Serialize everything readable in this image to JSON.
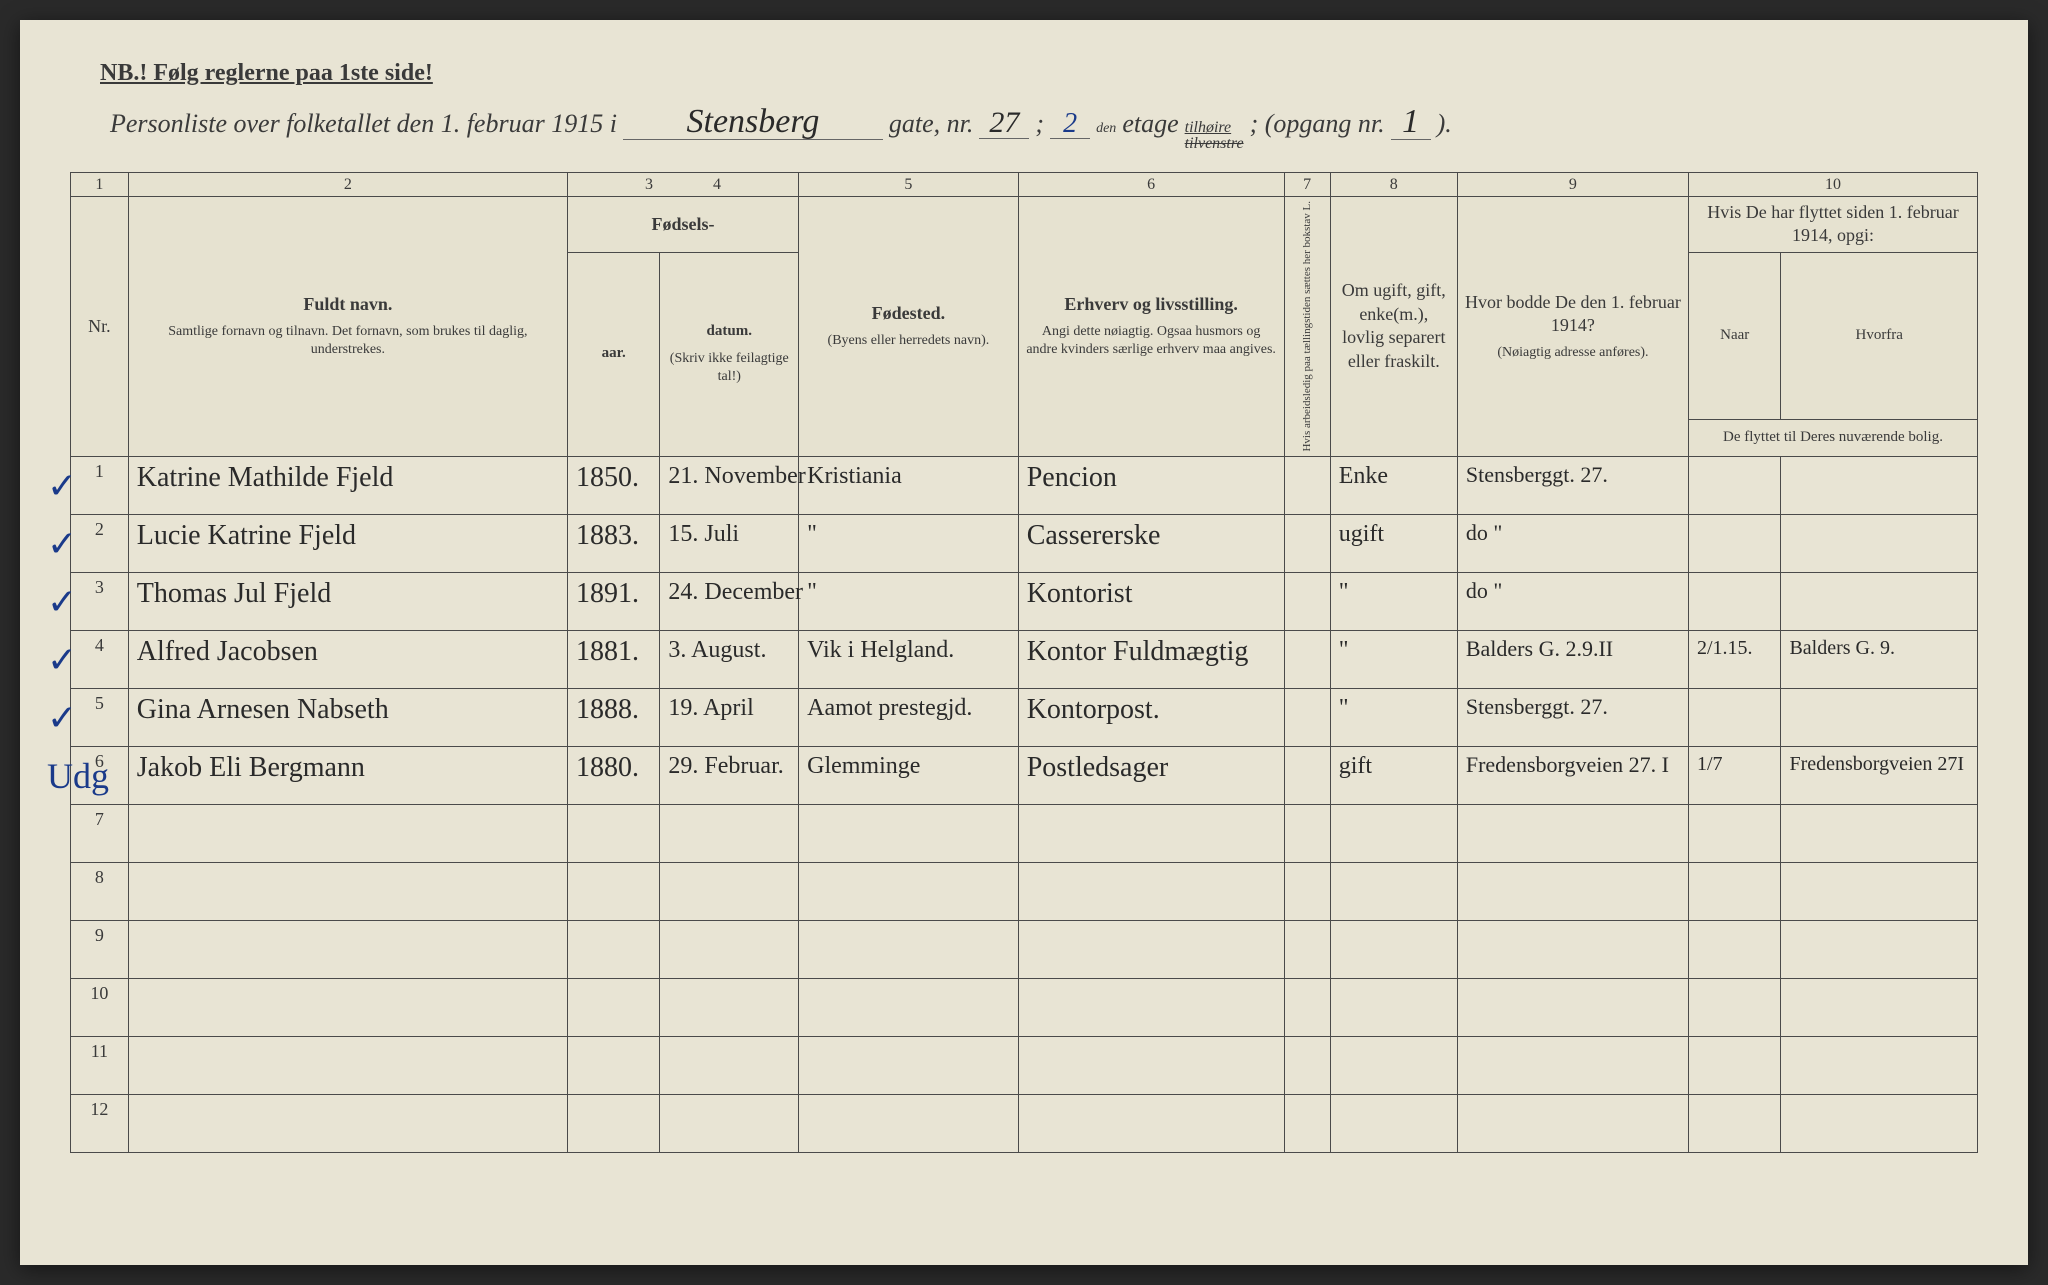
{
  "notice": "NB.! Følg reglerne paa 1ste side!",
  "header": {
    "prefix": "Personliste over folketallet den 1. februar 1915 i",
    "street": "Stensberg",
    "gate_label": "gate, nr.",
    "nr": "27",
    "semicolon": ";",
    "etage": "2",
    "etage_suffix": "den",
    "etage_label": "etage",
    "side_top": "tilhøire",
    "side_bottom": "tilvenstre",
    "opgang_label": "; (opgang nr.",
    "opgang": "1",
    "closing": ")."
  },
  "columns": {
    "nums": [
      "1",
      "2",
      "3",
      "4",
      "5",
      "6",
      "7",
      "8",
      "9",
      "10"
    ],
    "nr": "Nr.",
    "name_title": "Fuldt navn.",
    "name_sub": "Samtlige fornavn og tilnavn. Det fornavn, som brukes til daglig, understrekes.",
    "fodsels": "Fødsels-",
    "year": "aar.",
    "date": "datum.",
    "fodsels_note": "(Skriv ikke feilagtige tal!)",
    "place_title": "Fødested.",
    "place_sub": "(Byens eller herredets navn).",
    "occ_title": "Erhverv og livsstilling.",
    "occ_sub": "Angi dette nøiagtig. Ogsaa husmors og andre kvinders særlige erhverv maa angives.",
    "col7": "Hvis arbeidsledig paa tællingstiden sættes her bokstav L.",
    "civil": "Om ugift, gift, enke(m.), lovlig separert eller fraskilt.",
    "prev_title": "Hvor bodde De den 1. februar 1914?",
    "prev_sub": "(Nøiagtig adresse anføres).",
    "moved_title": "Hvis De har flyttet siden 1. februar 1914, opgi:",
    "naar": "Naar",
    "hvorfra": "Hvorfra",
    "moved_sub": "De flyttet til Deres nuværende bolig."
  },
  "rows": [
    {
      "n": "1",
      "check": "✓",
      "name": "Katrine Mathilde Fjeld",
      "year": "1850.",
      "date": "21. November",
      "place": "Kristiania",
      "occ": "Pencion",
      "l": "",
      "civil": "Enke",
      "prev": "Stensberggt. 27.",
      "naar": "",
      "hvorfra": ""
    },
    {
      "n": "2",
      "check": "✓",
      "name": "Lucie Katrine Fjeld",
      "year": "1883.",
      "date": "15. Juli",
      "place": "\"",
      "occ": "Cassererske",
      "l": "",
      "civil": "ugift",
      "prev": "do \"",
      "naar": "",
      "hvorfra": ""
    },
    {
      "n": "3",
      "check": "✓",
      "name": "Thomas Jul Fjeld",
      "year": "1891.",
      "date": "24. December",
      "place": "\"",
      "occ": "Kontorist",
      "l": "",
      "civil": "\"",
      "prev": "do \"",
      "naar": "",
      "hvorfra": ""
    },
    {
      "n": "4",
      "check": "✓",
      "name": "Alfred Jacobsen",
      "year": "1881.",
      "date": "3. August.",
      "place": "Vik i Helgland.",
      "occ": "Kontor Fuldmægtig",
      "l": "",
      "civil": "\"",
      "prev": "Balders G. 2.9.II",
      "naar": "2/1.15.",
      "hvorfra": "Balders G. 9."
    },
    {
      "n": "5",
      "check": "✓",
      "name": "Gina Arnesen Nabseth",
      "year": "1888.",
      "date": "19. April",
      "place": "Aamot prestegjd.",
      "occ": "Kontorpost.",
      "l": "",
      "civil": "\"",
      "prev": "Stensberggt. 27.",
      "naar": "",
      "hvorfra": ""
    },
    {
      "n": "6",
      "check": "Udg",
      "name": "Jakob Eli Bergmann",
      "year": "1880.",
      "date": "29. Februar.",
      "place": "Glemminge",
      "occ": "Postledsager",
      "l": "",
      "civil": "gift",
      "prev": "Fredensborgveien 27. I",
      "naar": "1/7",
      "hvorfra": "Fredensborgveien 27I"
    },
    {
      "n": "7",
      "check": "",
      "name": "",
      "year": "",
      "date": "",
      "place": "",
      "occ": "",
      "l": "",
      "civil": "",
      "prev": "",
      "naar": "",
      "hvorfra": ""
    },
    {
      "n": "8",
      "check": "",
      "name": "",
      "year": "",
      "date": "",
      "place": "",
      "occ": "",
      "l": "",
      "civil": "",
      "prev": "",
      "naar": "",
      "hvorfra": ""
    },
    {
      "n": "9",
      "check": "",
      "name": "",
      "year": "",
      "date": "",
      "place": "",
      "occ": "",
      "l": "",
      "civil": "",
      "prev": "",
      "naar": "",
      "hvorfra": ""
    },
    {
      "n": "10",
      "check": "",
      "name": "",
      "year": "",
      "date": "",
      "place": "",
      "occ": "",
      "l": "",
      "civil": "",
      "prev": "",
      "naar": "",
      "hvorfra": ""
    },
    {
      "n": "11",
      "check": "",
      "name": "",
      "year": "",
      "date": "",
      "place": "",
      "occ": "",
      "l": "",
      "civil": "",
      "prev": "",
      "naar": "",
      "hvorfra": ""
    },
    {
      "n": "12",
      "check": "",
      "name": "",
      "year": "",
      "date": "",
      "place": "",
      "occ": "",
      "l": "",
      "civil": "",
      "prev": "",
      "naar": "",
      "hvorfra": ""
    }
  ],
  "styling": {
    "paper_bg": "#e8e4d4",
    "border_color": "#4a4a4a",
    "print_color": "#3a3a3a",
    "handwriting_color": "#2a2a2a",
    "check_color": "#1a3a8a"
  }
}
